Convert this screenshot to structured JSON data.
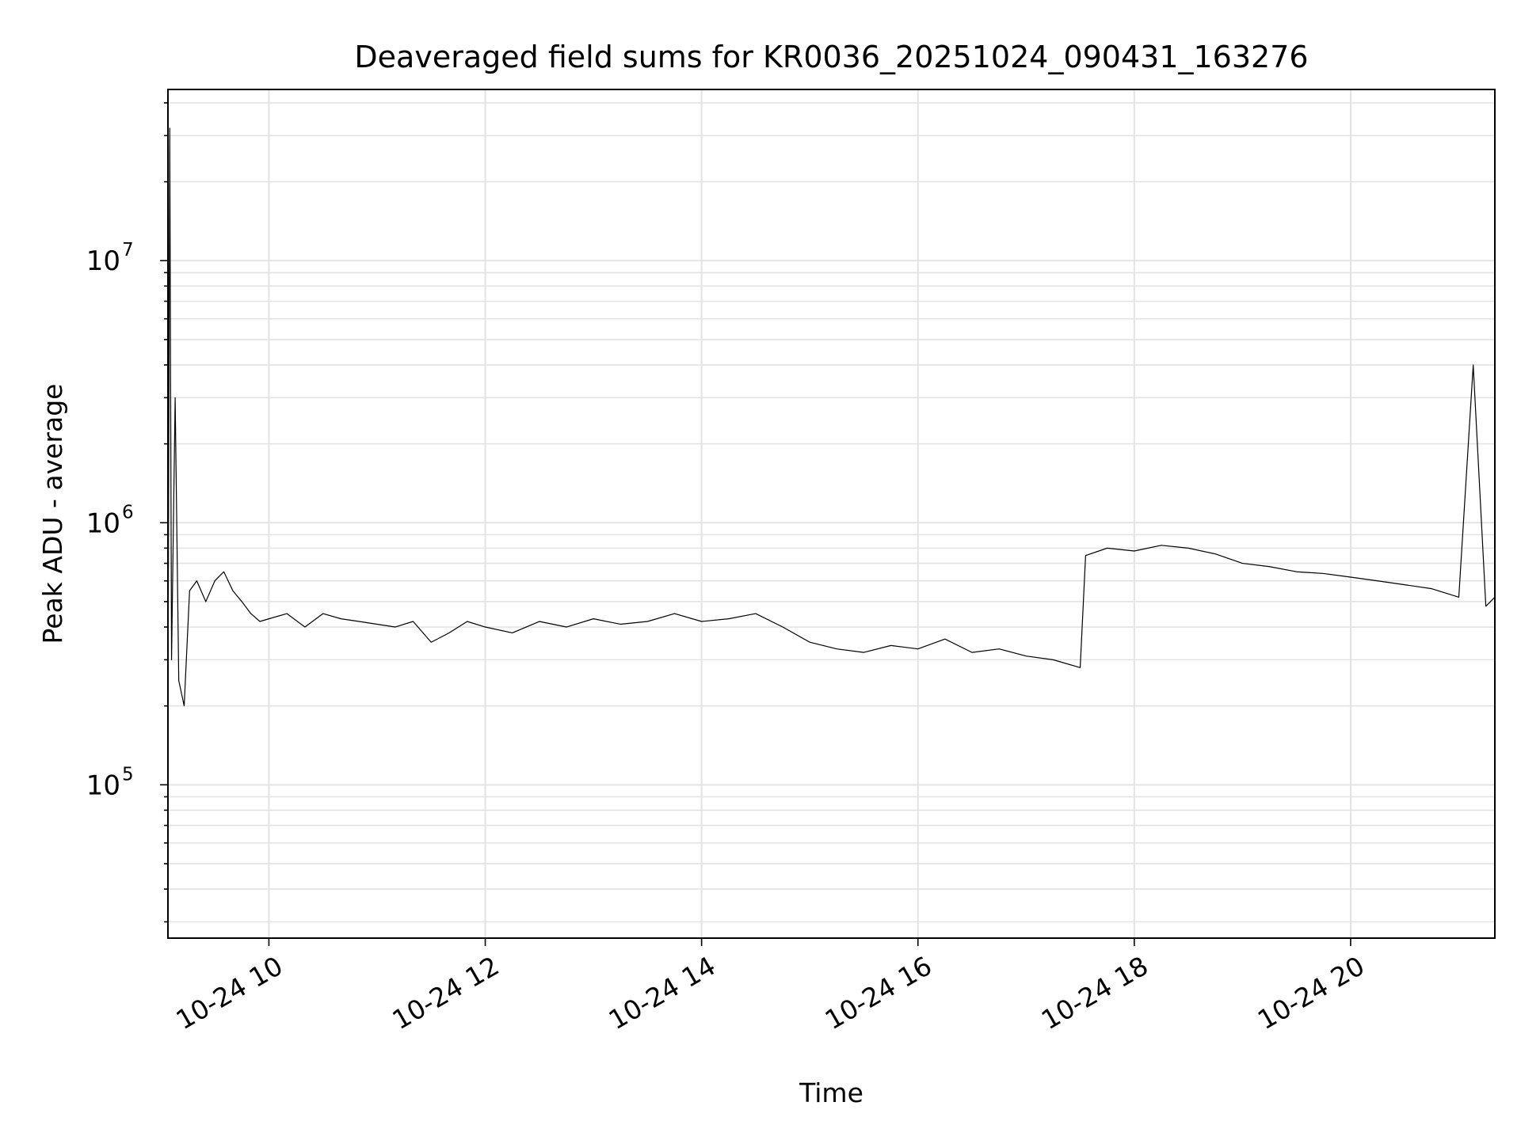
{
  "chart_data": {
    "type": "line",
    "title": "Deaveraged field sums for KR0036_20251024_090431_163276",
    "xlabel": "Time",
    "ylabel": "Peak ADU - average",
    "yscale": "log",
    "grid": true,
    "line_color": "#000000",
    "x_range": [
      "2025-10-24 09:04",
      "2025-10-24 21:20"
    ],
    "y_range": [
      26000,
      45000000
    ],
    "x_ticks": [
      {
        "value": "2025-10-24 10:00",
        "label": "10-24 10"
      },
      {
        "value": "2025-10-24 12:00",
        "label": "10-24 12"
      },
      {
        "value": "2025-10-24 14:00",
        "label": "10-24 14"
      },
      {
        "value": "2025-10-24 16:00",
        "label": "10-24 16"
      },
      {
        "value": "2025-10-24 18:00",
        "label": "10-24 18"
      },
      {
        "value": "2025-10-24 20:00",
        "label": "10-24 20"
      }
    ],
    "y_ticks": [
      {
        "value": 100000,
        "base": "10",
        "exp": "5"
      },
      {
        "value": 1000000,
        "base": "10",
        "exp": "6"
      },
      {
        "value": 10000000,
        "base": "10",
        "exp": "7"
      }
    ],
    "series": [
      {
        "x": [
          "2025-10-24 09:04",
          "2025-10-24 09:05",
          "2025-10-24 09:06",
          "2025-10-24 09:08",
          "2025-10-24 09:10",
          "2025-10-24 09:13",
          "2025-10-24 09:16",
          "2025-10-24 09:20",
          "2025-10-24 09:25",
          "2025-10-24 09:30",
          "2025-10-24 09:35",
          "2025-10-24 09:40",
          "2025-10-24 09:45",
          "2025-10-24 09:50",
          "2025-10-24 09:55",
          "2025-10-24 10:00",
          "2025-10-24 10:10",
          "2025-10-24 10:20",
          "2025-10-24 10:30",
          "2025-10-24 10:40",
          "2025-10-24 10:50",
          "2025-10-24 11:00",
          "2025-10-24 11:10",
          "2025-10-24 11:20",
          "2025-10-24 11:30",
          "2025-10-24 11:40",
          "2025-10-24 11:50",
          "2025-10-24 12:00",
          "2025-10-24 12:15",
          "2025-10-24 12:30",
          "2025-10-24 12:45",
          "2025-10-24 13:00",
          "2025-10-24 13:15",
          "2025-10-24 13:30",
          "2025-10-24 13:45",
          "2025-10-24 14:00",
          "2025-10-24 14:15",
          "2025-10-24 14:30",
          "2025-10-24 14:45",
          "2025-10-24 15:00",
          "2025-10-24 15:15",
          "2025-10-24 15:30",
          "2025-10-24 15:45",
          "2025-10-24 16:00",
          "2025-10-24 16:15",
          "2025-10-24 16:30",
          "2025-10-24 16:45",
          "2025-10-24 17:00",
          "2025-10-24 17:15",
          "2025-10-24 17:30",
          "2025-10-24 17:33",
          "2025-10-24 17:45",
          "2025-10-24 18:00",
          "2025-10-24 18:15",
          "2025-10-24 18:30",
          "2025-10-24 18:45",
          "2025-10-24 19:00",
          "2025-10-24 19:15",
          "2025-10-24 19:30",
          "2025-10-24 19:45",
          "2025-10-24 20:00",
          "2025-10-24 20:15",
          "2025-10-24 20:30",
          "2025-10-24 20:45",
          "2025-10-24 21:00",
          "2025-10-24 21:08",
          "2025-10-24 21:15",
          "2025-10-24 21:20"
        ],
        "y": [
          180000,
          32000000,
          300000,
          3000000,
          250000,
          200000,
          550000,
          600000,
          500000,
          600000,
          650000,
          550000,
          500000,
          450000,
          420000,
          430000,
          450000,
          400000,
          450000,
          430000,
          420000,
          410000,
          400000,
          420000,
          350000,
          380000,
          420000,
          400000,
          380000,
          420000,
          400000,
          430000,
          410000,
          420000,
          450000,
          420000,
          430000,
          450000,
          400000,
          350000,
          330000,
          320000,
          340000,
          330000,
          360000,
          320000,
          330000,
          310000,
          300000,
          280000,
          750000,
          800000,
          780000,
          820000,
          800000,
          760000,
          700000,
          680000,
          650000,
          640000,
          620000,
          600000,
          580000,
          560000,
          520000,
          4000000,
          480000,
          520000
        ]
      }
    ]
  }
}
